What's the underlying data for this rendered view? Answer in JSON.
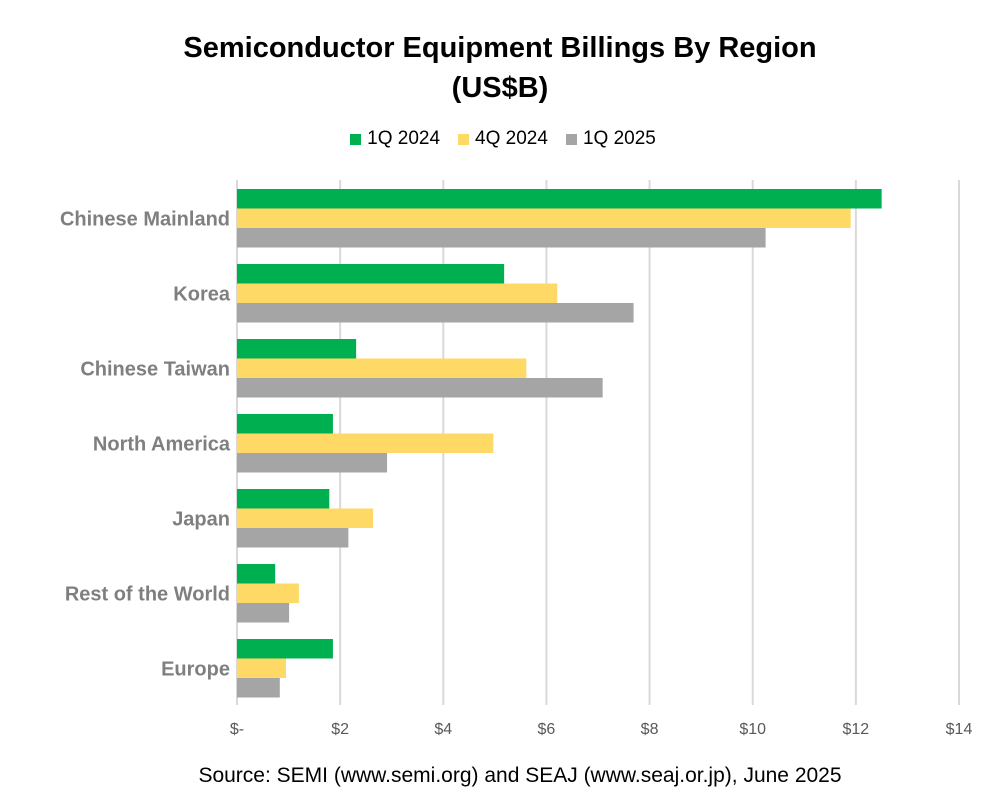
{
  "chart_data": {
    "type": "bar",
    "orientation": "horizontal",
    "title": "Semiconductor Equipment Billings By Region",
    "subtitle": "(US$B)",
    "categories": [
      "Chinese Mainland",
      "Korea",
      "Chinese Taiwan",
      "North America",
      "Japan",
      "Rest of the World",
      "Europe"
    ],
    "series": [
      {
        "name": "1Q 2024",
        "color": "#00b050",
        "values": [
          12.5,
          5.18,
          2.31,
          1.86,
          1.79,
          0.74,
          1.86
        ]
      },
      {
        "name": "4Q 2024",
        "color": "#ffd966",
        "values": [
          11.9,
          6.21,
          5.61,
          4.97,
          2.64,
          1.2,
          0.95
        ]
      },
      {
        "name": "1Q 2025",
        "color": "#a5a5a5",
        "values": [
          10.25,
          7.69,
          7.09,
          2.91,
          2.16,
          1.01,
          0.83
        ]
      }
    ],
    "xlim": [
      0,
      14
    ],
    "xticks": [
      0,
      2,
      4,
      6,
      8,
      10,
      12,
      14
    ],
    "xtick_labels": [
      "$-",
      "$2",
      "$4",
      "$6",
      "$8",
      "$10",
      "$12",
      "$14"
    ],
    "grid": "vertical",
    "legend_position": "top",
    "source": "Source: SEMI (www.semi.org) and SEAJ (www.seaj.or.jp), June 2025"
  }
}
